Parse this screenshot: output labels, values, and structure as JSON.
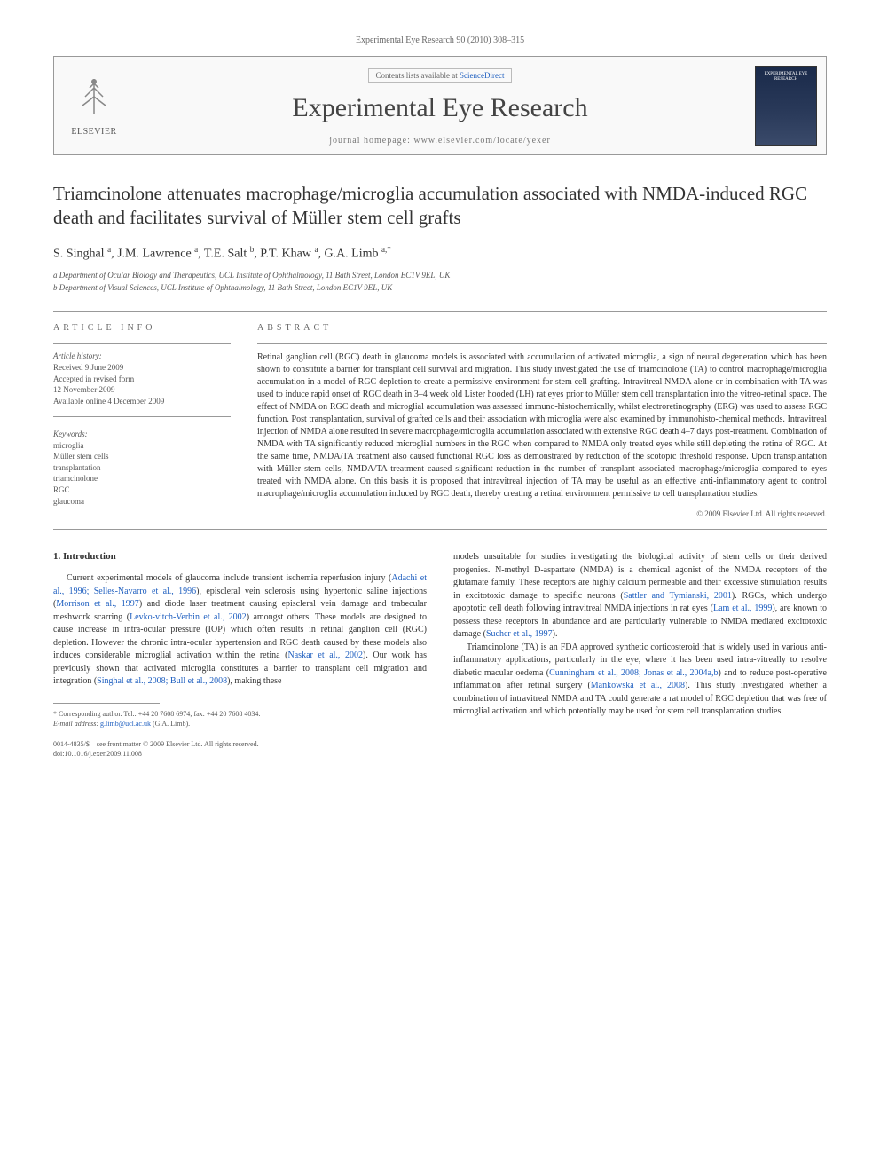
{
  "citation": "Experimental Eye Research 90 (2010) 308–315",
  "header": {
    "contents_prefix": "Contents lists available at ",
    "contents_link": "ScienceDirect",
    "journal": "Experimental Eye Research",
    "homepage_prefix": "journal homepage: ",
    "homepage_url": "www.elsevier.com/locate/yexer",
    "publisher": "ELSEVIER",
    "cover_text": "EXPERIMENTAL EYE RESEARCH"
  },
  "article": {
    "title": "Triamcinolone attenuates macrophage/microglia accumulation associated with NMDA-induced RGC death and facilitates survival of Müller stem cell grafts",
    "authors_html": "S. Singhal <sup>a</sup>, J.M. Lawrence <sup>a</sup>, T.E. Salt <sup>b</sup>, P.T. Khaw <sup>a</sup>, G.A. Limb <sup>a,*</sup>",
    "affiliations": [
      "a Department of Ocular Biology and Therapeutics, UCL Institute of Ophthalmology, 11 Bath Street, London EC1V 9EL, UK",
      "b Department of Visual Sciences, UCL Institute of Ophthalmology, 11 Bath Street, London EC1V 9EL, UK"
    ]
  },
  "info": {
    "section_label": "ARTICLE INFO",
    "history_label": "Article history:",
    "history": [
      "Received 9 June 2009",
      "Accepted in revised form",
      "12 November 2009",
      "Available online 4 December 2009"
    ],
    "keywords_label": "Keywords:",
    "keywords": [
      "microglia",
      "Müller stem cells",
      "transplantation",
      "triamcinolone",
      "RGC",
      "glaucoma"
    ]
  },
  "abstract": {
    "section_label": "ABSTRACT",
    "text": "Retinal ganglion cell (RGC) death in glaucoma models is associated with accumulation of activated microglia, a sign of neural degeneration which has been shown to constitute a barrier for transplant cell survival and migration. This study investigated the use of triamcinolone (TA) to control macrophage/microglia accumulation in a model of RGC depletion to create a permissive environment for stem cell grafting. Intravitreal NMDA alone or in combination with TA was used to induce rapid onset of RGC death in 3–4 week old Lister hooded (LH) rat eyes prior to Müller stem cell transplantation into the vitreo-retinal space. The effect of NMDA on RGC death and microglial accumulation was assessed immuno-histochemically, whilst electroretinography (ERG) was used to assess RGC function. Post transplantation, survival of grafted cells and their association with microglia were also examined by immunohisto-chemical methods. Intravitreal injection of NMDA alone resulted in severe macrophage/microglia accumulation associated with extensive RGC death 4–7 days post-treatment. Combination of NMDA with TA significantly reduced microglial numbers in the RGC when compared to NMDA only treated eyes while still depleting the retina of RGC. At the same time, NMDA/TA treatment also caused functional RGC loss as demonstrated by reduction of the scotopic threshold response. Upon transplantation with Müller stem cells, NMDA/TA treatment caused significant reduction in the number of transplant associated macrophage/microglia compared to eyes treated with NMDA alone. On this basis it is proposed that intravitreal injection of TA may be useful as an effective anti-inflammatory agent to control macrophage/microglia accumulation induced by RGC death, thereby creating a retinal environment permissive to cell transplantation studies.",
    "copyright": "© 2009 Elsevier Ltd. All rights reserved."
  },
  "body": {
    "heading": "1. Introduction",
    "col1": "Current experimental models of glaucoma include transient ischemia reperfusion injury (Adachi et al., 1996; Selles-Navarro et al., 1996), episcleral vein sclerosis using hypertonic saline injections (Morrison et al., 1997) and diode laser treatment causing episcleral vein damage and trabecular meshwork scarring (Levko-vitch-Verbin et al., 2002) amongst others. These models are designed to cause increase in intra-ocular pressure (IOP) which often results in retinal ganglion cell (RGC) depletion. However the chronic intra-ocular hypertension and RGC death caused by these models also induces considerable microglial activation within the retina (Naskar et al., 2002). Our work has previously shown that activated microglia constitutes a barrier to transplant cell migration and integration (Singhal et al., 2008; Bull et al., 2008), making these",
    "col2_p1": "models unsuitable for studies investigating the biological activity of stem cells or their derived progenies. N-methyl D-aspartate (NMDA) is a chemical agonist of the NMDA receptors of the glutamate family. These receptors are highly calcium permeable and their excessive stimulation results in excitotoxic damage to specific neurons (Sattler and Tymianski, 2001). RGCs, which undergo apoptotic cell death following intravitreal NMDA injections in rat eyes (Lam et al., 1999), are known to possess these receptors in abundance and are particularly vulnerable to NMDA mediated excitotoxic damage (Sucher et al., 1997).",
    "col2_p2": "Triamcinolone (TA) is an FDA approved synthetic corticosteroid that is widely used in various anti-inflammatory applications, particularly in the eye, where it has been used intra-vitreally to resolve diabetic macular oedema (Cunningham et al., 2008; Jonas et al., 2004a,b) and to reduce post-operative inflammation after retinal surgery (Mankowska et al., 2008). This study investigated whether a combination of intravitreal NMDA and TA could generate a rat model of RGC depletion that was free of microglial activation and which potentially may be used for stem cell transplantation studies."
  },
  "footer": {
    "corresponding": "* Corresponding author. Tel.: +44 20 7608 6974; fax: +44 20 7608 4034.",
    "email_label": "E-mail address: ",
    "email": "g.limb@ucl.ac.uk",
    "email_suffix": " (G.A. Limb).",
    "front_matter": "0014-4835/$ – see front matter © 2009 Elsevier Ltd. All rights reserved.",
    "doi": "doi:10.1016/j.exer.2009.11.008"
  },
  "colors": {
    "link": "#2060c0",
    "text": "#333333",
    "muted": "#666666",
    "border": "#999999"
  }
}
